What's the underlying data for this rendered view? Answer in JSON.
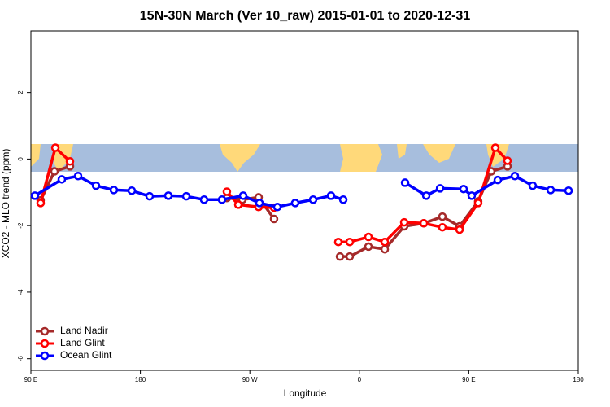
{
  "chart_data": {
    "type": "line",
    "title": "15N-30N March (Ver 10_raw)   2015-01-01 to 2020-12-31",
    "x_label": "Longitude",
    "y_label": "XCO2 - MLO trend (ppm)",
    "xlim": [
      90,
      540
    ],
    "xticks": [
      {
        "value": 90,
        "label": "90 E"
      },
      {
        "value": 180,
        "label": "180"
      },
      {
        "value": 270,
        "label": "90 W"
      },
      {
        "value": 360,
        "label": "0"
      },
      {
        "value": 450,
        "label": "90 E"
      },
      {
        "value": 540,
        "label": "180"
      }
    ],
    "ylim": [
      -6.35,
      3.85
    ],
    "yticks": [
      -6,
      -4,
      -2,
      0,
      2
    ],
    "legend": "bottom-left",
    "series": [
      {
        "name": "Land Nadir",
        "color": "#a52a2a",
        "x": [
          98,
          109.4,
          122.1,
          null,
          251.1,
          263.8,
          277.2,
          289.9,
          null,
          344.1,
          352.1,
          367.5,
          380.9,
          396.9,
          413,
          428.3,
          442.4,
          457.7,
          468.4,
          481.8
        ],
        "values": [
          -1.24,
          -0.37,
          -0.22,
          null,
          -1.17,
          -1.22,
          -1.15,
          -1.8,
          null,
          -2.93,
          -2.93,
          -2.63,
          -2.71,
          -2.02,
          -1.93,
          -1.73,
          -2.02,
          -1.27,
          -0.37,
          -0.22
        ]
      },
      {
        "name": "Land Glint",
        "color": "#ff0000",
        "x": [
          98,
          110.1,
          122.1,
          null,
          251.1,
          260.5,
          277.2,
          289.9,
          null,
          342.7,
          352.1,
          367.5,
          380.9,
          396.9,
          413,
          428.3,
          442.4,
          457.7,
          471.8,
          481.8
        ],
        "values": [
          -1.32,
          0.34,
          -0.07,
          null,
          -0.98,
          -1.37,
          -1.44,
          -1.46,
          null,
          -2.49,
          -2.49,
          -2.34,
          -2.49,
          -1.9,
          -1.93,
          -2.05,
          -2.12,
          -1.32,
          0.34,
          -0.05
        ]
      },
      {
        "name": "Ocean Glint",
        "color": "#0000ff",
        "x": [
          93.3,
          115.4,
          128.8,
          143.5,
          158.2,
          172.9,
          187.6,
          203,
          217.7,
          232.4,
          247.1,
          264.5,
          277.9,
          292.6,
          307.3,
          322,
          336.7,
          346.8,
          null,
          397.6,
          415,
          426.4,
          445.7,
          452.4,
          473.8,
          487.9,
          502.5,
          517.3,
          532
        ],
        "values": [
          -1.1,
          -0.61,
          -0.51,
          -0.8,
          -0.93,
          -0.95,
          -1.12,
          -1.1,
          -1.12,
          -1.22,
          -1.22,
          -1.1,
          -1.32,
          -1.44,
          -1.32,
          -1.22,
          -1.1,
          -1.22,
          null,
          -0.71,
          -1.1,
          -0.88,
          -0.9,
          -1.1,
          -0.63,
          -0.51,
          -0.8,
          -0.93,
          -0.95
        ]
      }
    ]
  }
}
